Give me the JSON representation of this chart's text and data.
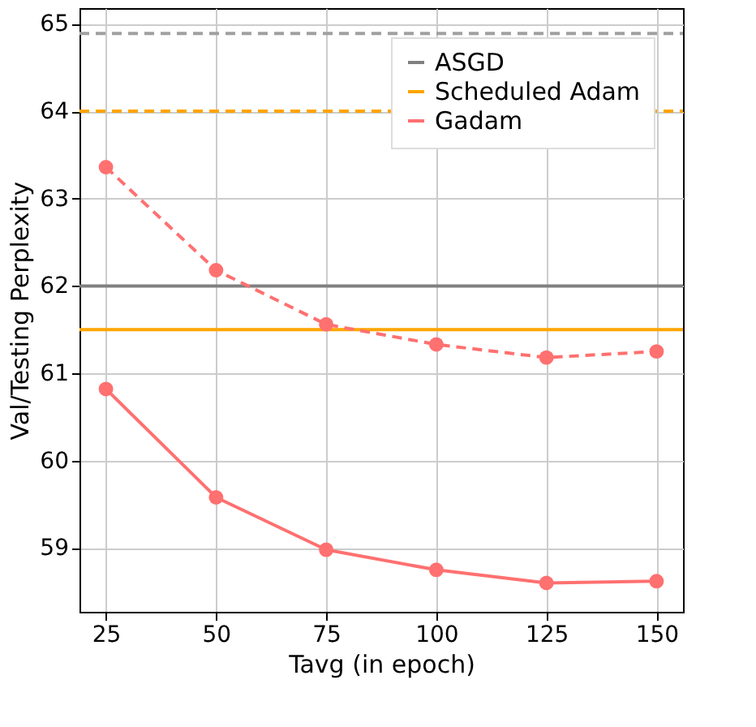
{
  "chart_data": {
    "type": "line",
    "xlabel": "Tavg (in epoch)",
    "ylabel": "Val/Testing Perplexity",
    "xlim": [
      19,
      156
    ],
    "xticks": [
      25,
      50,
      75,
      100,
      125,
      150
    ],
    "ylim": [
      58.27,
      65.18
    ],
    "yticks": [
      59,
      60,
      61,
      62,
      63,
      64,
      65
    ],
    "grid": true,
    "legend": "top right",
    "series": [
      {
        "name": "ASGD",
        "color": "#808080",
        "x": [
          19,
          156
        ],
        "values": [
          62,
          62
        ],
        "line_style": "solid",
        "marker": "none"
      },
      {
        "name": "Scheduled Adam",
        "color": "#ffa500",
        "x": [
          19,
          156
        ],
        "values": [
          61.5,
          61.5
        ],
        "line_style": "solid",
        "marker": "none"
      },
      {
        "name": "Gadam",
        "color": "#ff7070",
        "x": [
          25,
          50,
          75,
          100,
          125,
          150
        ],
        "values": [
          60.82,
          59.58,
          58.98,
          58.75,
          58.6,
          58.62
        ],
        "line_style": "solid",
        "marker": "circle"
      },
      {
        "color": "#a0a0a0",
        "x": [
          19,
          156
        ],
        "values": [
          64.89,
          64.89
        ],
        "line_style": "dashed",
        "marker": "none"
      },
      {
        "color": "#ffa500",
        "x": [
          19,
          156
        ],
        "values": [
          64.0,
          64.0
        ],
        "line_style": "dashed",
        "marker": "none"
      },
      {
        "color": "#ff7070",
        "x": [
          25,
          50,
          75,
          100,
          125,
          150
        ],
        "values": [
          63.36,
          62.18,
          61.56,
          61.33,
          61.18,
          61.25
        ],
        "line_style": "dashed",
        "marker": "circle"
      }
    ]
  }
}
